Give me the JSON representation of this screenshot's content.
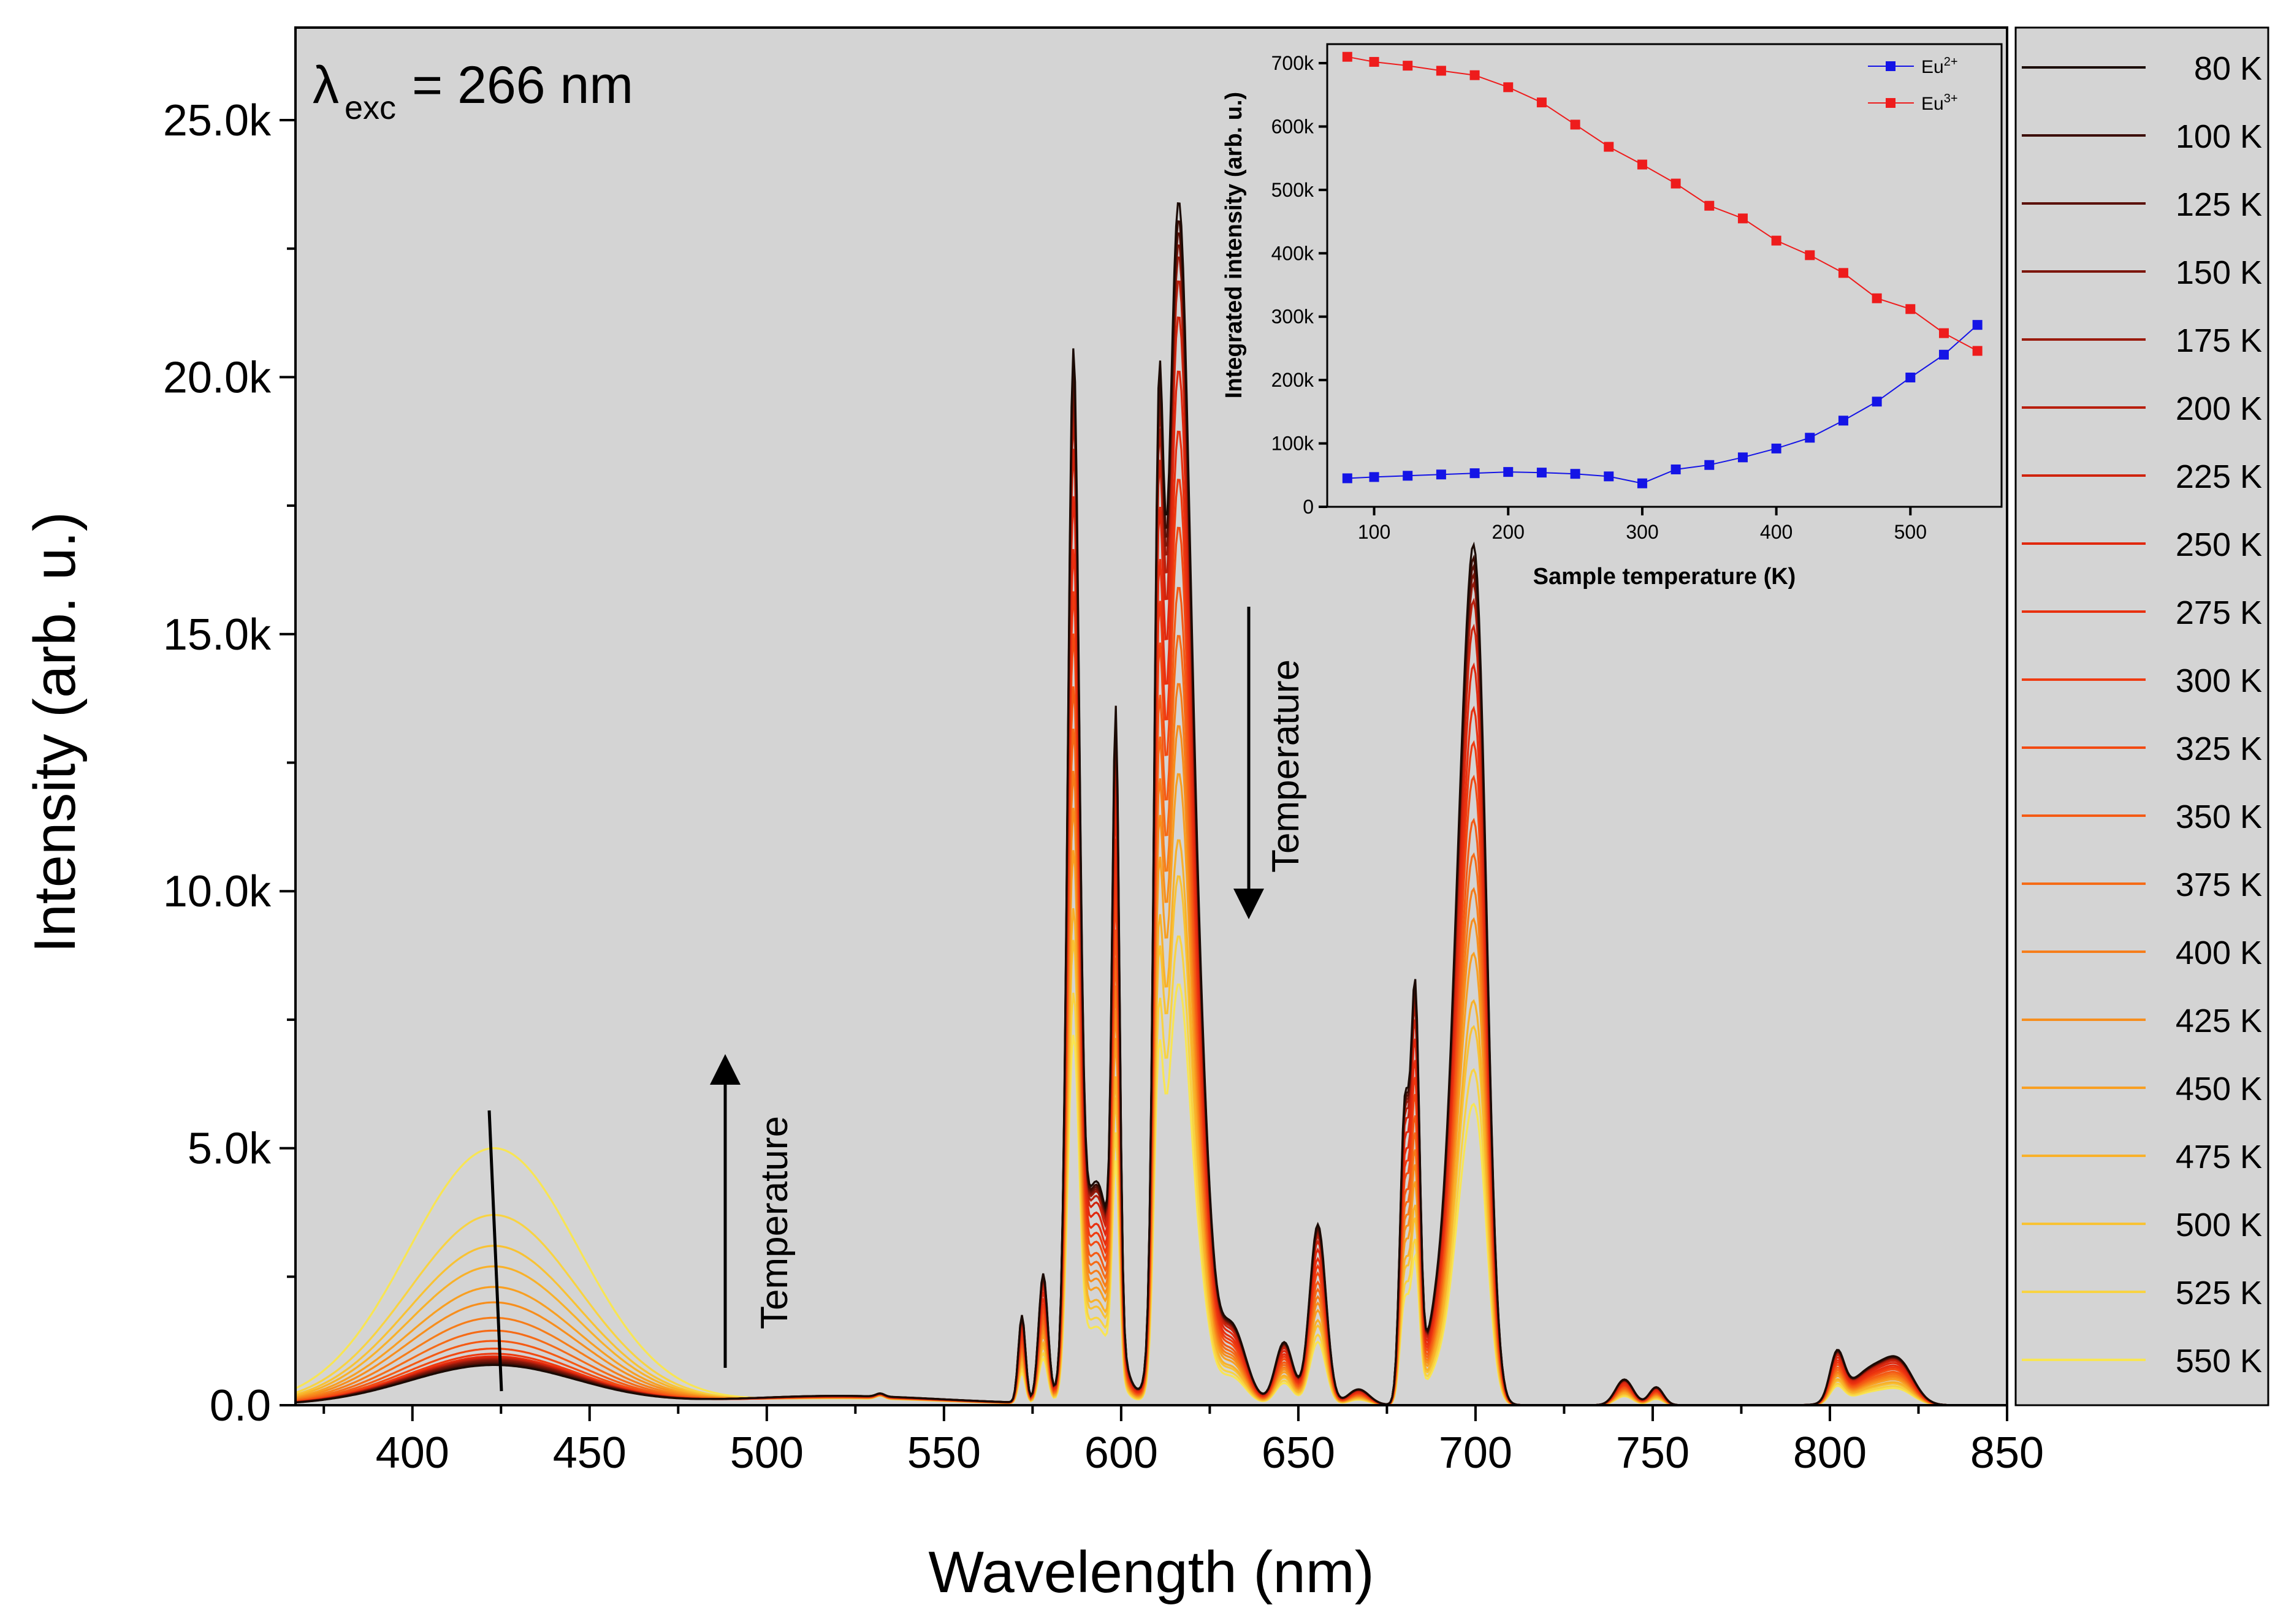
{
  "chart_data": [
    {
      "type": "line",
      "title": "",
      "annotation_lambda": "λ",
      "annotation_lambda_sub": "exc",
      "annotation_value": "=  266 nm",
      "xlabel": "Wavelength (nm)",
      "ylabel": "Intensity (arb. u.)",
      "xlim": [
        367,
        850
      ],
      "ylim": [
        0,
        26800
      ],
      "xticks": [
        400,
        450,
        500,
        550,
        600,
        650,
        700,
        750,
        800,
        850
      ],
      "xtick_labels": [
        "400",
        "450",
        "500",
        "550",
        "600",
        "650",
        "700",
        "750",
        "800",
        "850"
      ],
      "yticks": [
        0,
        5000,
        10000,
        15000,
        20000,
        25000
      ],
      "ytick_labels": [
        "0.0",
        "5.0k",
        "10.0k",
        "15.0k",
        "20.0k",
        "25.0k"
      ],
      "temperature_label_up": "Temperature",
      "temperature_label_down": "Temperature",
      "legend_position": "right, outside plot",
      "series": [
        {
          "name": "80 K",
          "color": "#1a0a04",
          "eu2_peak": 780,
          "eu3_scale": 1.0
        },
        {
          "name": "100 K",
          "color": "#3c0d05",
          "eu2_peak": 800,
          "eu3_scale": 0.985
        },
        {
          "name": "125 K",
          "color": "#5b1108",
          "eu2_peak": 830,
          "eu3_scale": 0.975
        },
        {
          "name": "150 K",
          "color": "#7c1609",
          "eu2_peak": 860,
          "eu3_scale": 0.965
        },
        {
          "name": "175 K",
          "color": "#9a1a0b",
          "eu2_peak": 880,
          "eu3_scale": 0.955
        },
        {
          "name": "200 K",
          "color": "#b81f0c",
          "eu2_peak": 900,
          "eu3_scale": 0.935
        },
        {
          "name": "225 K",
          "color": "#cf240d",
          "eu2_peak": 920,
          "eu3_scale": 0.905
        },
        {
          "name": "250 K",
          "color": "#e0280e",
          "eu2_peak": 930,
          "eu3_scale": 0.86
        },
        {
          "name": "275 K",
          "color": "#e8300f",
          "eu2_peak": 950,
          "eu3_scale": 0.81
        },
        {
          "name": "300 K",
          "color": "#ef3a10",
          "eu2_peak": 1000,
          "eu3_scale": 0.77
        },
        {
          "name": "325 K",
          "color": "#f24a12",
          "eu2_peak": 1100,
          "eu3_scale": 0.73
        },
        {
          "name": "350 K",
          "color": "#f45a14",
          "eu2_peak": 1250,
          "eu3_scale": 0.68
        },
        {
          "name": "375 K",
          "color": "#f56b17",
          "eu2_peak": 1450,
          "eu3_scale": 0.64
        },
        {
          "name": "400 K",
          "color": "#f67d1a",
          "eu2_peak": 1700,
          "eu3_scale": 0.6
        },
        {
          "name": "425 K",
          "color": "#f78e1d",
          "eu2_peak": 2000,
          "eu3_scale": 0.565
        },
        {
          "name": "450 K",
          "color": "#f89f22",
          "eu2_peak": 2300,
          "eu3_scale": 0.525
        },
        {
          "name": "475 K",
          "color": "#f8b12a",
          "eu2_peak": 2700,
          "eu3_scale": 0.47
        },
        {
          "name": "500 K",
          "color": "#f8c234",
          "eu2_peak": 3100,
          "eu3_scale": 0.44
        },
        {
          "name": "525 K",
          "color": "#f8d342",
          "eu2_peak": 3700,
          "eu3_scale": 0.39
        },
        {
          "name": "550 K",
          "color": "#f8e553",
          "eu2_peak": 5000,
          "eu3_scale": 0.35
        }
      ]
    },
    {
      "type": "line",
      "title": "",
      "xlabel": "Sample temperature (K)",
      "ylabel": "Integrated intensity (arb. u.)",
      "xlim": [
        65,
        568
      ],
      "ylim": [
        0,
        730000
      ],
      "xticks": [
        100,
        200,
        300,
        400,
        500
      ],
      "xtick_labels": [
        "100",
        "200",
        "300",
        "400",
        "500"
      ],
      "yticks": [
        0,
        100000,
        200000,
        300000,
        400000,
        500000,
        600000,
        700000
      ],
      "ytick_labels": [
        "0",
        "100k",
        "200k",
        "300k",
        "400k",
        "500k",
        "600k",
        "700k"
      ],
      "legend_position": "top-right",
      "x": [
        80,
        100,
        125,
        150,
        175,
        200,
        225,
        250,
        275,
        300,
        325,
        350,
        375,
        400,
        425,
        450,
        475,
        500,
        525,
        550
      ],
      "series": [
        {
          "name": "Eu",
          "superscript": "2+",
          "color": "#1414e6",
          "values": [
            45000,
            47000,
            49000,
            51000,
            53000,
            55000,
            54000,
            52000,
            48000,
            37000,
            59000,
            66000,
            78000,
            92000,
            109000,
            136000,
            166000,
            204000,
            240000,
            287000
          ]
        },
        {
          "name": "Eu",
          "superscript": "3+",
          "color": "#ee1c1c",
          "values": [
            710000,
            702000,
            696000,
            688000,
            681000,
            662000,
            638000,
            603000,
            568000,
            540000,
            510000,
            475000,
            455000,
            420000,
            397000,
            369000,
            329000,
            312000,
            274000,
            246000
          ]
        }
      ]
    }
  ]
}
